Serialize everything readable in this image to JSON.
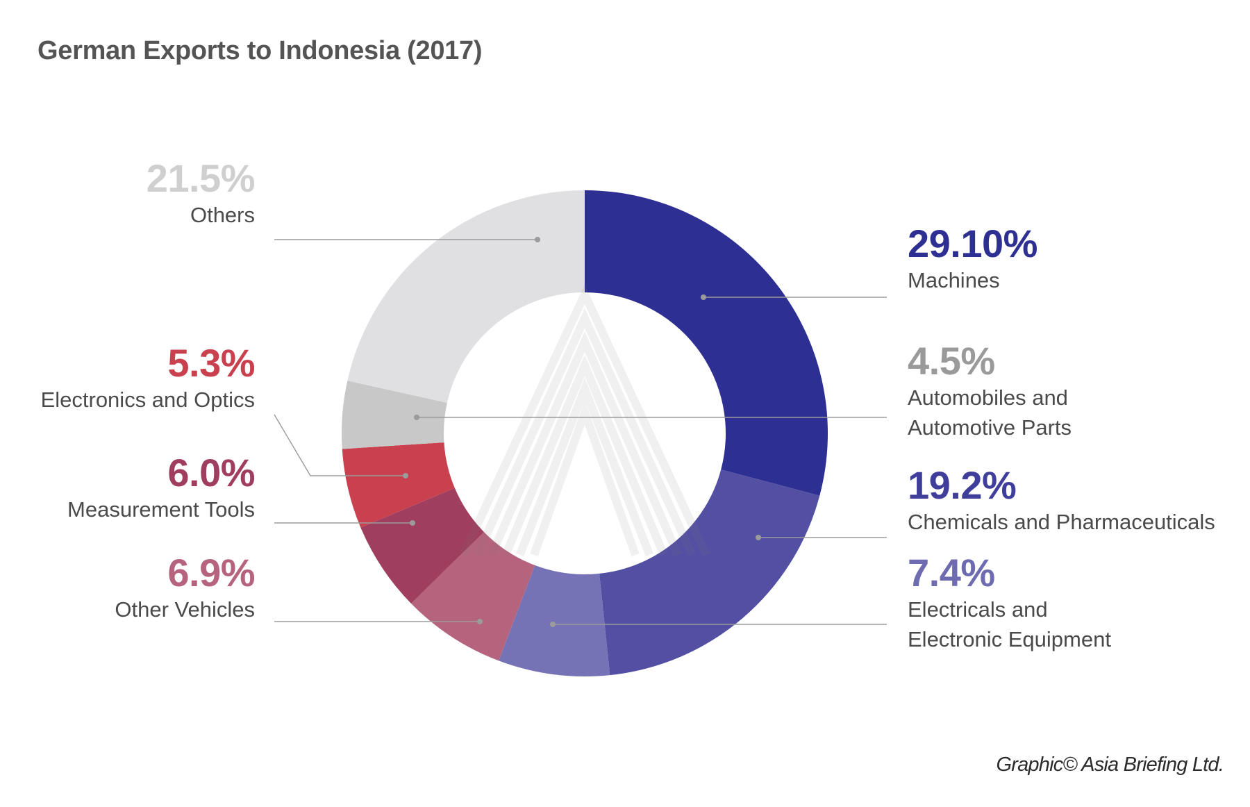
{
  "title": "German Exports to Indonesia (2017)",
  "credit": "Graphic© Asia Briefing Ltd.",
  "chart_data": {
    "type": "pie",
    "title": "German Exports to Indonesia (2017)",
    "slices": [
      {
        "label": "Machines",
        "pct_label": "29.10%",
        "value": 29.1,
        "color": "#2e2f92",
        "lines": [
          "Machines"
        ]
      },
      {
        "label": "Chemicals and Pharmaceuticals",
        "pct_label": "19.2%",
        "value": 19.2,
        "color": "#5350a3",
        "lines": [
          "Chemicals and Pharmaceuticals"
        ]
      },
      {
        "label": "Electricals and Electronic Equipment",
        "pct_label": "7.4%",
        "value": 7.4,
        "color": "#7573b5",
        "lines": [
          "Electricals and",
          "Electronic Equipment"
        ]
      },
      {
        "label": "Other Vehicles",
        "pct_label": "6.9%",
        "value": 6.9,
        "color": "#b6647e",
        "lines": [
          "Other Vehicles"
        ]
      },
      {
        "label": "Measurement Tools",
        "pct_label": "6.0%",
        "value": 6.0,
        "color": "#a03e5f",
        "lines": [
          "Measurement Tools"
        ]
      },
      {
        "label": "Electronics and Optics",
        "pct_label": "5.3%",
        "value": 5.3,
        "color": "#c9404f",
        "lines": [
          "Electronics and Optics"
        ]
      },
      {
        "label": "Automobiles and Automotive Parts",
        "pct_label": "4.5%",
        "value": 4.5,
        "color": "#c8c8c9",
        "lines": [
          "Automobiles and",
          "Automotive Parts"
        ]
      },
      {
        "label": "Others",
        "pct_label": "21.5%",
        "value": 21.5,
        "color": "#e0e0e2",
        "lines": [
          "Others"
        ]
      }
    ],
    "label_colors": {
      "Machines": "#2e2f92",
      "Chemicals and Pharmaceuticals": "#3f3f9b",
      "Electricals and Electronic Equipment": "#6e6bb0",
      "Other Vehicles": "#b6647e",
      "Measurement Tools": "#a03e5f",
      "Electronics and Optics": "#c9404f",
      "Automobiles and Automotive Parts": "#9a9a9a",
      "Others": "#cfcfcf"
    }
  }
}
